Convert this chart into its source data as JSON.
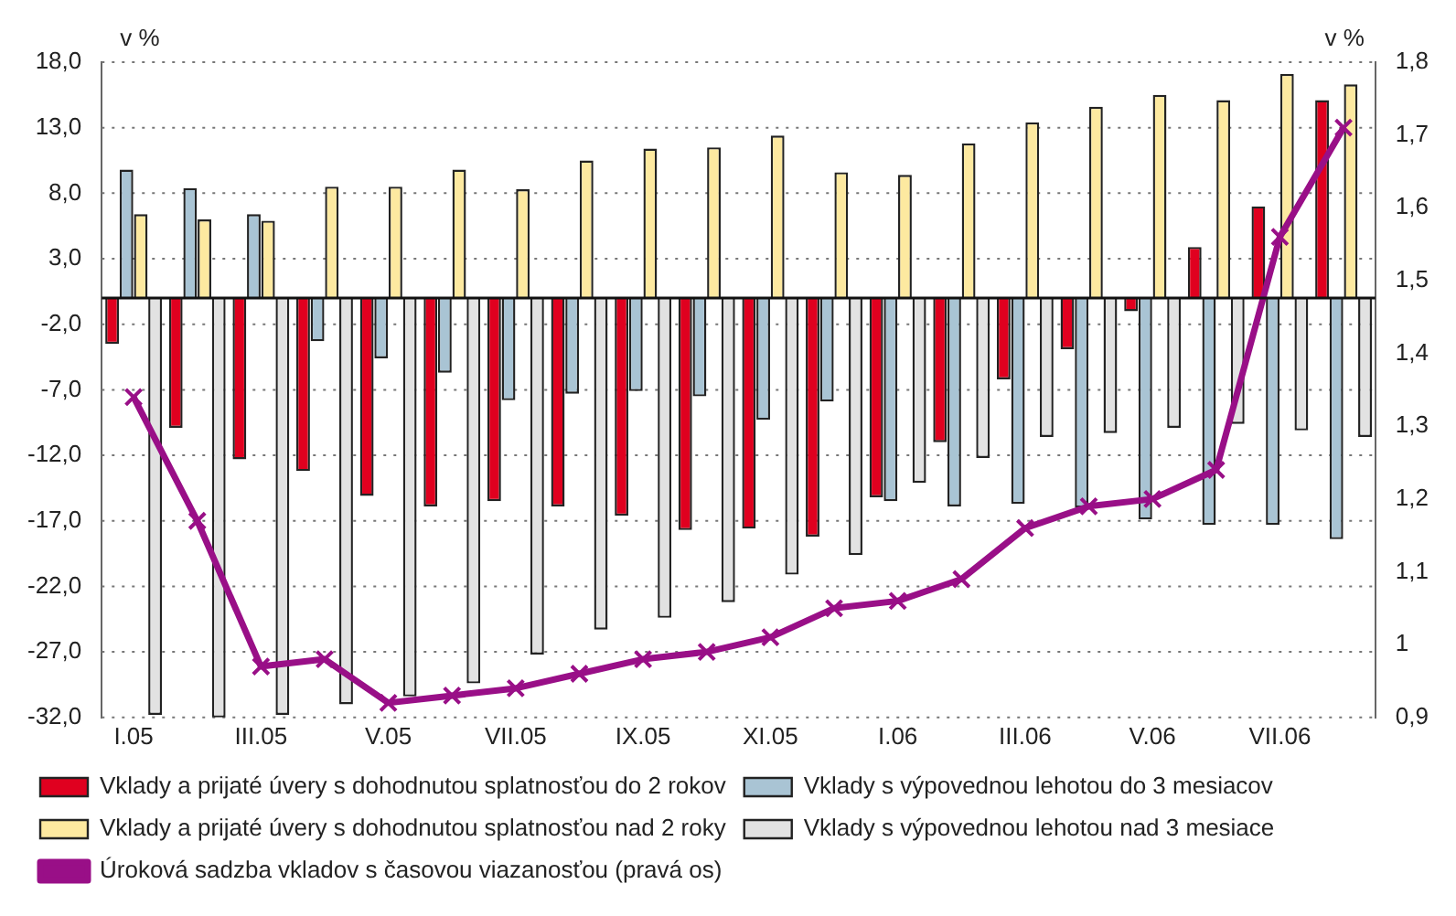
{
  "chart_data": {
    "type": "bar",
    "ylabel": "v %",
    "y2label": "v %",
    "categories": [
      "I.05",
      null,
      "III.05",
      null,
      "V.05",
      null,
      "VII.05",
      null,
      "IX.05",
      null,
      "XI.05",
      null,
      "I.06",
      null,
      "III.06",
      null,
      "V.06",
      null,
      "VII.06",
      null
    ],
    "series": [
      {
        "name": "Vklady a prijaté úvery s dohodnutou splatnosťou do 2 rokov",
        "color": "#e0001f",
        "values": [
          -3.5,
          -9.9,
          -12.3,
          -13.2,
          -15.1,
          -15.9,
          -15.5,
          -15.9,
          -16.6,
          -17.7,
          -17.6,
          -18.2,
          -15.2,
          -11.0,
          -6.2,
          -3.9,
          -1.0,
          3.9,
          7.0,
          15.1
        ]
      },
      {
        "name": "Vklady s výpovednou lehotou do 3 mesiacov",
        "color": "#a9c4d4",
        "values": [
          9.8,
          8.4,
          6.4,
          -3.3,
          -4.6,
          -5.7,
          -7.8,
          -7.3,
          -7.1,
          -7.5,
          -9.3,
          -7.9,
          -15.5,
          -15.9,
          -15.7,
          -16.0,
          -16.9,
          -17.3,
          -17.3,
          -18.4
        ]
      },
      {
        "name": "Vklady a prijaté úvery s dohodnutou splatnosťou nad 2 roky",
        "color": "#fde9a0",
        "values": [
          6.4,
          6.0,
          5.9,
          8.5,
          8.5,
          9.8,
          8.3,
          10.5,
          11.4,
          11.5,
          12.4,
          9.6,
          9.4,
          11.8,
          13.4,
          14.6,
          15.5,
          15.1,
          17.1,
          16.3
        ]
      },
      {
        "name": "Vklady s výpovednou lehotou nad 3 mesiace",
        "color": "#e2e2e2",
        "values": [
          -31.8,
          -32.0,
          -31.8,
          -31.0,
          -30.4,
          -29.4,
          -27.2,
          -25.3,
          -24.4,
          -23.2,
          -21.1,
          -19.6,
          -14.1,
          -12.2,
          -10.6,
          -10.3,
          -9.9,
          -9.6,
          -10.1,
          -10.6
        ]
      },
      {
        "name": "Úroková sadzba vkladov s časovou viazanosťou (pravá os)",
        "type": "line",
        "axis": "y2",
        "color": "#990f87",
        "marker": "cross",
        "values": [
          1.34,
          1.17,
          0.97,
          0.98,
          0.92,
          0.93,
          0.94,
          0.96,
          0.98,
          0.99,
          1.01,
          1.05,
          1.06,
          1.09,
          1.16,
          1.19,
          1.2,
          1.24,
          1.56,
          1.71
        ]
      }
    ],
    "ylim": [
      -32,
      18
    ],
    "yticks": [
      {
        "value": -32,
        "label": "-32,0"
      },
      {
        "value": -27,
        "label": "-27,0"
      },
      {
        "value": -22,
        "label": "-22,0"
      },
      {
        "value": -17,
        "label": "-17,0"
      },
      {
        "value": -12,
        "label": "-12,0"
      },
      {
        "value": -7,
        "label": "-7,0"
      },
      {
        "value": -2,
        "label": "-2,0"
      },
      {
        "value": 3,
        "label": "3,0"
      },
      {
        "value": 8,
        "label": "8,0"
      },
      {
        "value": 13,
        "label": "13,0"
      },
      {
        "value": 18,
        "label": "18,0"
      }
    ],
    "y2lim": [
      0.9,
      1.8
    ],
    "y2ticks": [
      {
        "value": 0.9,
        "label": "0,9"
      },
      1,
      {
        "value": 1.1,
        "label": "1,1"
      },
      {
        "value": 1.2,
        "label": "1,2"
      },
      {
        "value": 1.3,
        "label": "1,3"
      },
      {
        "value": 1.4,
        "label": "1,4"
      },
      {
        "value": 1.5,
        "label": "1,5"
      },
      {
        "value": 1.6,
        "label": "1,6"
      },
      {
        "value": 1.7,
        "label": "1,7"
      },
      {
        "value": 1.8,
        "label": "1,8"
      }
    ],
    "grid": "y",
    "legend": "bottom"
  }
}
